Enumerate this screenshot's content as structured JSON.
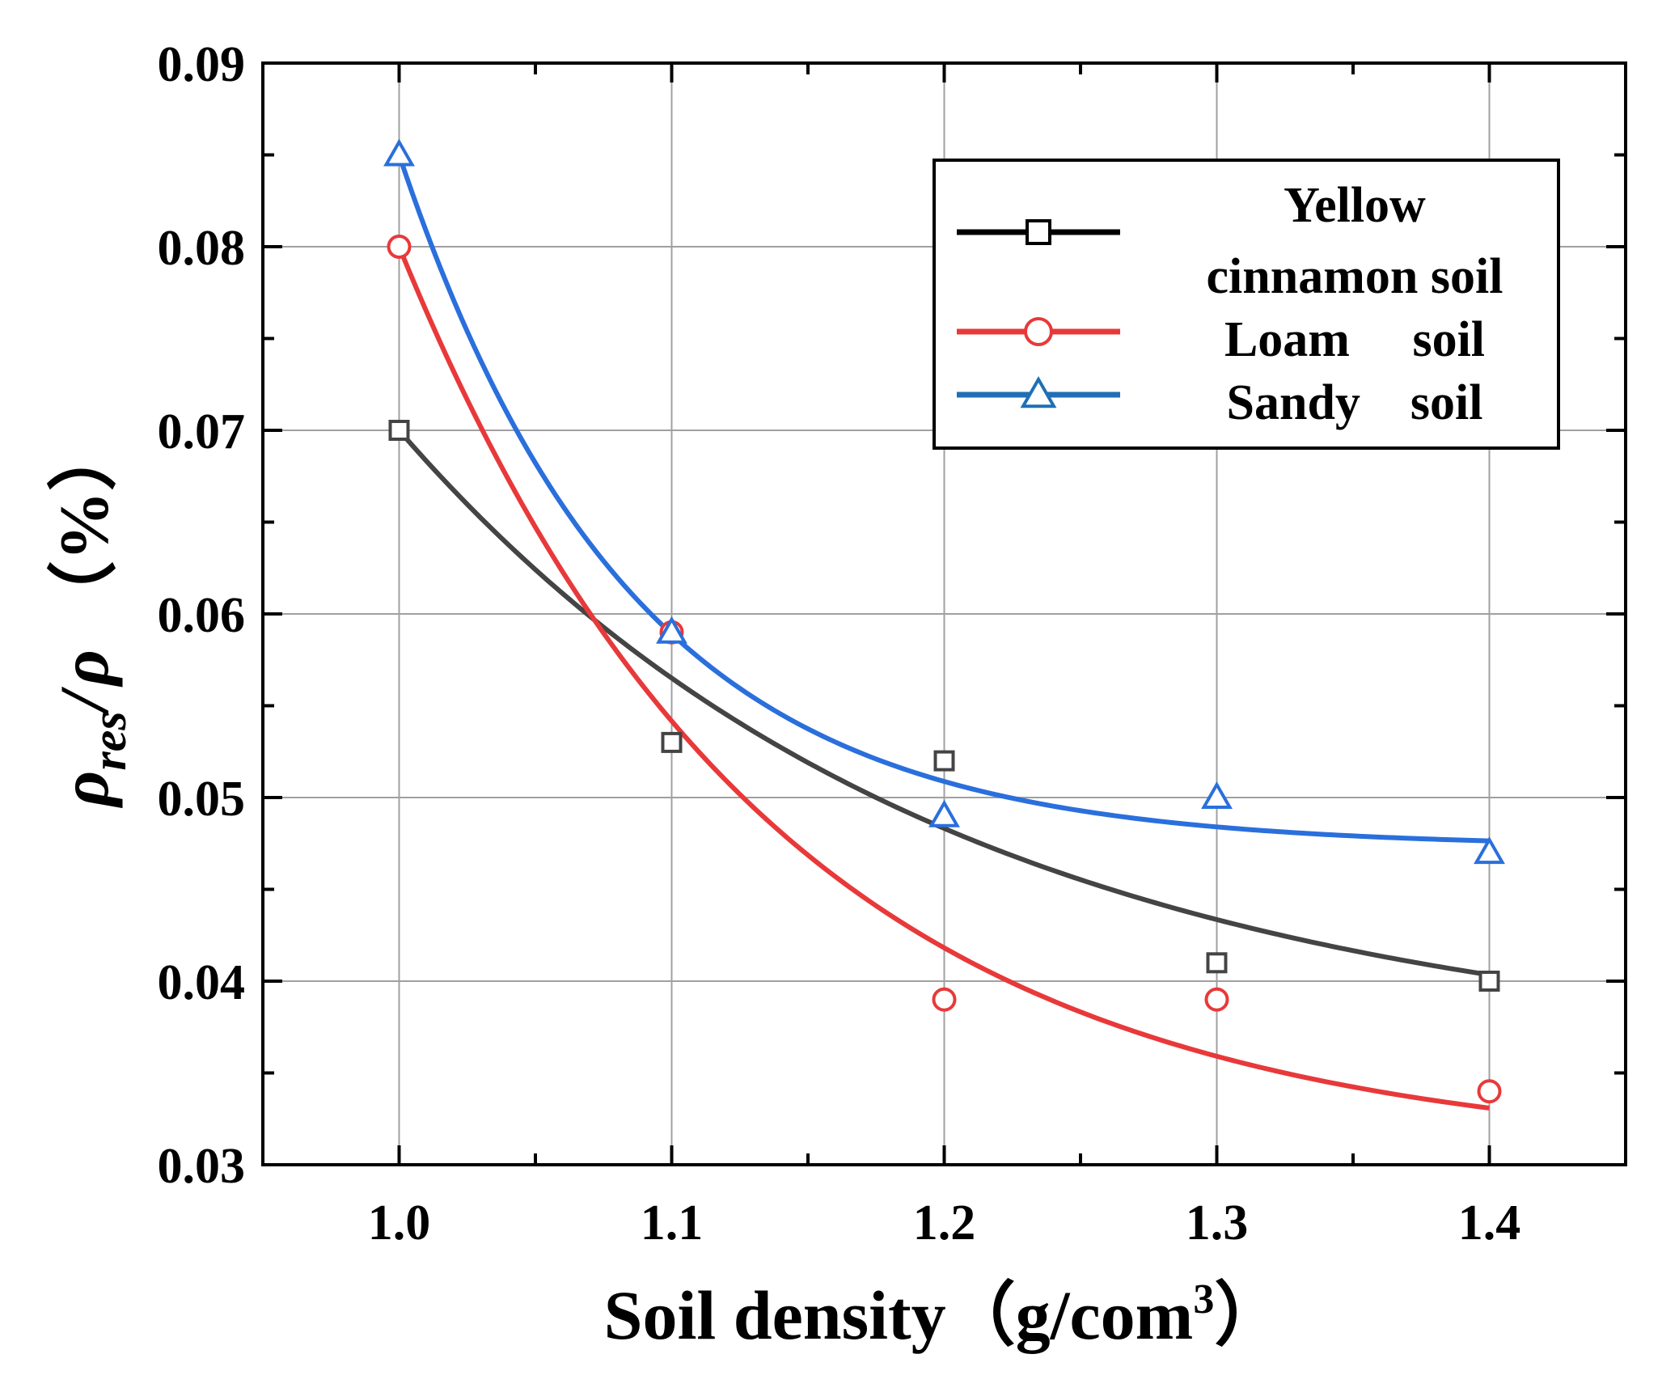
{
  "chart_data": {
    "type": "scatter",
    "x": [
      1.0,
      1.1,
      1.2,
      1.3,
      1.4
    ],
    "xticks": [
      "1.0",
      "1.1",
      "1.2",
      "1.3",
      "1.4"
    ],
    "yticks": [
      "0.03",
      "0.04",
      "0.05",
      "0.06",
      "0.07",
      "0.08",
      "0.09"
    ],
    "xlim": [
      0.95,
      1.45
    ],
    "ylim": [
      0.03,
      0.09
    ],
    "grid": true,
    "legend_position": "top-right",
    "xlabel": {
      "main": "Soil density（g/com",
      "sup": "3",
      "close": "）"
    },
    "ylabel": {
      "rho": "ρ",
      "sub": "res",
      "slash": "/",
      "rho2": "ρ",
      "unit": "（%）"
    },
    "series": [
      {
        "name": "Yellow cinnamon soil",
        "legend_lines": [
          "Yellow",
          "cinnamon soil"
        ],
        "marker": "square",
        "color": "#444444",
        "values": [
          0.07,
          0.053,
          0.052,
          0.041,
          0.04
        ],
        "fit": {
          "a": 0.0357,
          "b": 0.0343,
          "k": 5.0
        }
      },
      {
        "name": "Loam soil",
        "legend_lines": [
          "Loam     soil"
        ],
        "marker": "circle",
        "color": "#e8393a",
        "values": [
          0.08,
          0.059,
          0.039,
          0.039,
          0.034
        ],
        "fit": {
          "a": 0.0305,
          "b": 0.0495,
          "k": 7.38
        }
      },
      {
        "name": "Sandy soil",
        "legend_lines": [
          "Sandy    soil"
        ],
        "marker": "triangle",
        "color": "#2a6fdc",
        "values": [
          0.085,
          0.059,
          0.049,
          0.05,
          0.047
        ],
        "fit": {
          "a": 0.0473,
          "b": 0.0377,
          "k": 11.78
        }
      }
    ]
  },
  "legend": {
    "line_colors": [
      "#000000",
      "#e8393a",
      "#1f6fb5"
    ]
  }
}
